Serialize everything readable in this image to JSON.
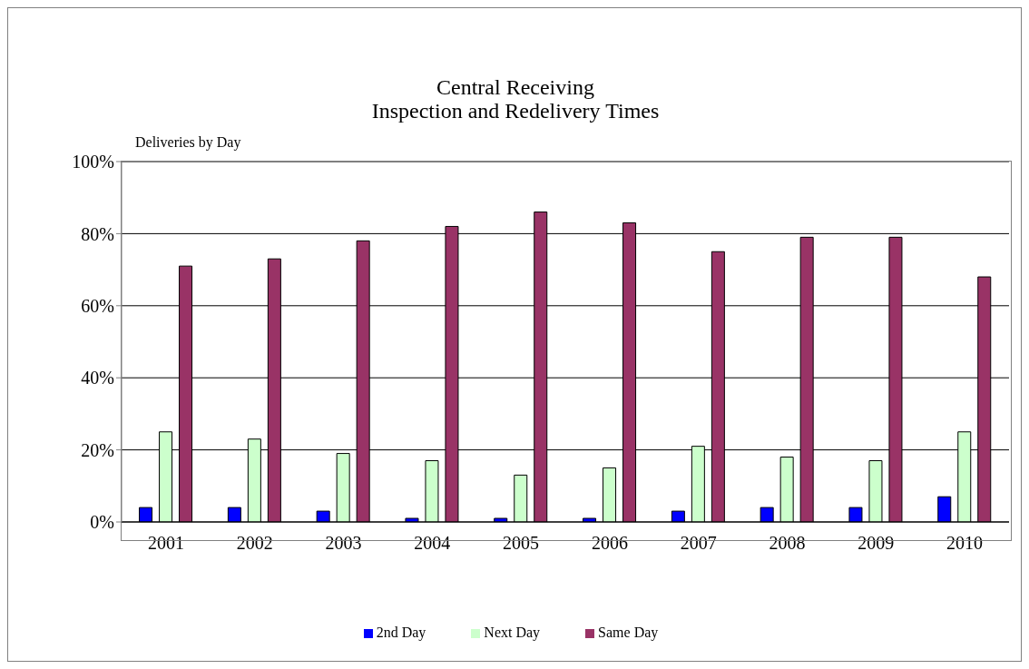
{
  "chart_data": {
    "type": "bar",
    "title": "Central Receiving\nInspection and Redelivery Times",
    "ylabel": "Deliveries by Day",
    "categories": [
      "2001",
      "2002",
      "2003",
      "2004",
      "2005",
      "2006",
      "2007",
      "2008",
      "2009",
      "2010"
    ],
    "series": [
      {
        "name": "2nd Day",
        "color": "#0000ff",
        "values": [
          4,
          4,
          3,
          1,
          1,
          1,
          3,
          4,
          4,
          7
        ]
      },
      {
        "name": "Next Day",
        "color": "#ccffcc",
        "values": [
          25,
          23,
          19,
          17,
          13,
          15,
          21,
          18,
          17,
          25
        ]
      },
      {
        "name": "Same Day",
        "color": "#993366",
        "values": [
          71,
          73,
          78,
          82,
          86,
          83,
          75,
          79,
          79,
          68
        ]
      }
    ],
    "ylim": [
      0,
      100
    ],
    "yticks": [
      {
        "value": 0,
        "label": "0%"
      },
      {
        "value": 20,
        "label": "20%"
      },
      {
        "value": 40,
        "label": "40%"
      },
      {
        "value": 60,
        "label": "60%"
      },
      {
        "value": 80,
        "label": "80%"
      },
      {
        "value": 100,
        "label": "100%"
      }
    ],
    "grid": "y",
    "legend": "bottom"
  }
}
